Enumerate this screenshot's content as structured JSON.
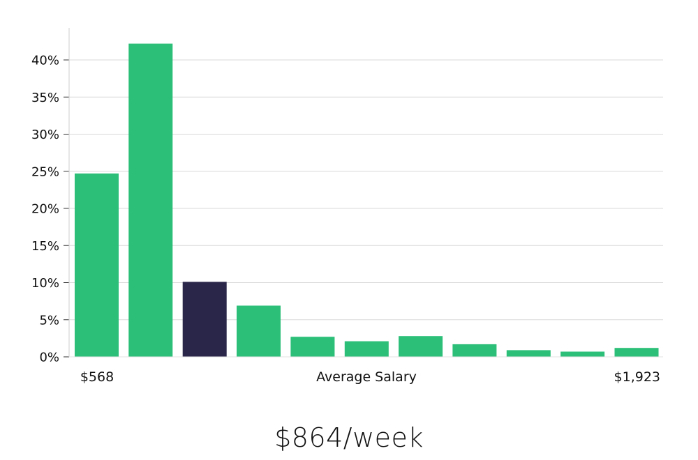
{
  "chart_data": {
    "type": "bar",
    "title": "",
    "xlabel": "Average Salary",
    "ylabel": "",
    "x_range_labels": {
      "min": "$568",
      "max": "$1,923"
    },
    "values": [
      24.7,
      42.2,
      10.1,
      6.9,
      2.7,
      2.1,
      2.8,
      1.7,
      0.9,
      0.7,
      1.2
    ],
    "highlight_index": 2,
    "ylim": [
      0,
      44
    ],
    "yticks": [
      0,
      5,
      10,
      15,
      20,
      25,
      30,
      35,
      40
    ],
    "ytick_labels": [
      "0%",
      "5%",
      "10%",
      "15%",
      "20%",
      "25%",
      "30%",
      "35%",
      "40%"
    ],
    "grid": true
  },
  "summary": {
    "value_text": "$864/week"
  },
  "colors": {
    "bar": "#2bbf78",
    "highlight": "#29264a",
    "grid": "#d9d9d9",
    "axis": "#cccccc"
  }
}
